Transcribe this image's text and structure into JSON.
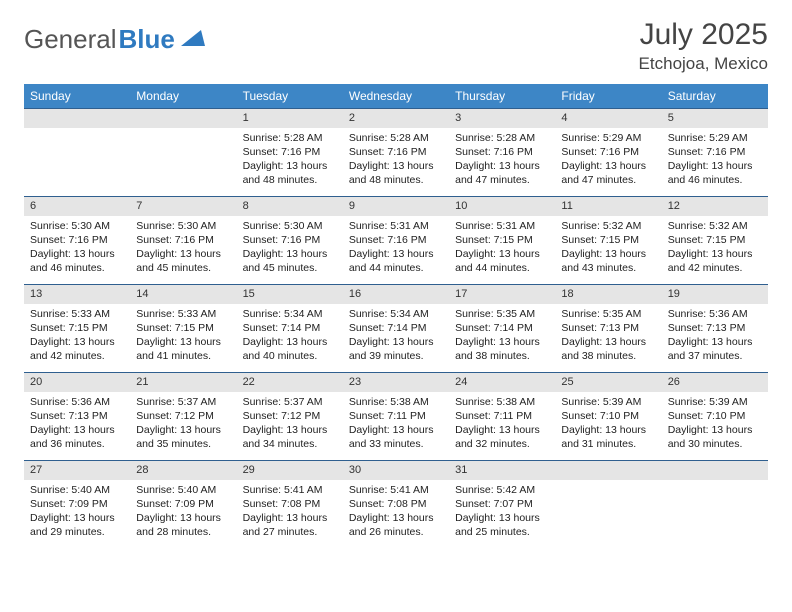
{
  "logo": {
    "word1": "General",
    "word2": "Blue"
  },
  "header": {
    "month_title": "July 2025",
    "location": "Etchojoa, Mexico"
  },
  "colors": {
    "header_bg": "#3d86c6",
    "header_text": "#ffffff",
    "daynum_bg": "#e5e5e5",
    "cell_border": "#2f5f8f",
    "logo_gray": "#555555",
    "logo_blue": "#2f7ac0"
  },
  "weekdays": [
    "Sunday",
    "Monday",
    "Tuesday",
    "Wednesday",
    "Thursday",
    "Friday",
    "Saturday"
  ],
  "weeks": [
    [
      null,
      null,
      {
        "n": "1",
        "sr": "5:28 AM",
        "ss": "7:16 PM",
        "dl": "13 hours and 48 minutes."
      },
      {
        "n": "2",
        "sr": "5:28 AM",
        "ss": "7:16 PM",
        "dl": "13 hours and 48 minutes."
      },
      {
        "n": "3",
        "sr": "5:28 AM",
        "ss": "7:16 PM",
        "dl": "13 hours and 47 minutes."
      },
      {
        "n": "4",
        "sr": "5:29 AM",
        "ss": "7:16 PM",
        "dl": "13 hours and 47 minutes."
      },
      {
        "n": "5",
        "sr": "5:29 AM",
        "ss": "7:16 PM",
        "dl": "13 hours and 46 minutes."
      }
    ],
    [
      {
        "n": "6",
        "sr": "5:30 AM",
        "ss": "7:16 PM",
        "dl": "13 hours and 46 minutes."
      },
      {
        "n": "7",
        "sr": "5:30 AM",
        "ss": "7:16 PM",
        "dl": "13 hours and 45 minutes."
      },
      {
        "n": "8",
        "sr": "5:30 AM",
        "ss": "7:16 PM",
        "dl": "13 hours and 45 minutes."
      },
      {
        "n": "9",
        "sr": "5:31 AM",
        "ss": "7:16 PM",
        "dl": "13 hours and 44 minutes."
      },
      {
        "n": "10",
        "sr": "5:31 AM",
        "ss": "7:15 PM",
        "dl": "13 hours and 44 minutes."
      },
      {
        "n": "11",
        "sr": "5:32 AM",
        "ss": "7:15 PM",
        "dl": "13 hours and 43 minutes."
      },
      {
        "n": "12",
        "sr": "5:32 AM",
        "ss": "7:15 PM",
        "dl": "13 hours and 42 minutes."
      }
    ],
    [
      {
        "n": "13",
        "sr": "5:33 AM",
        "ss": "7:15 PM",
        "dl": "13 hours and 42 minutes."
      },
      {
        "n": "14",
        "sr": "5:33 AM",
        "ss": "7:15 PM",
        "dl": "13 hours and 41 minutes."
      },
      {
        "n": "15",
        "sr": "5:34 AM",
        "ss": "7:14 PM",
        "dl": "13 hours and 40 minutes."
      },
      {
        "n": "16",
        "sr": "5:34 AM",
        "ss": "7:14 PM",
        "dl": "13 hours and 39 minutes."
      },
      {
        "n": "17",
        "sr": "5:35 AM",
        "ss": "7:14 PM",
        "dl": "13 hours and 38 minutes."
      },
      {
        "n": "18",
        "sr": "5:35 AM",
        "ss": "7:13 PM",
        "dl": "13 hours and 38 minutes."
      },
      {
        "n": "19",
        "sr": "5:36 AM",
        "ss": "7:13 PM",
        "dl": "13 hours and 37 minutes."
      }
    ],
    [
      {
        "n": "20",
        "sr": "5:36 AM",
        "ss": "7:13 PM",
        "dl": "13 hours and 36 minutes."
      },
      {
        "n": "21",
        "sr": "5:37 AM",
        "ss": "7:12 PM",
        "dl": "13 hours and 35 minutes."
      },
      {
        "n": "22",
        "sr": "5:37 AM",
        "ss": "7:12 PM",
        "dl": "13 hours and 34 minutes."
      },
      {
        "n": "23",
        "sr": "5:38 AM",
        "ss": "7:11 PM",
        "dl": "13 hours and 33 minutes."
      },
      {
        "n": "24",
        "sr": "5:38 AM",
        "ss": "7:11 PM",
        "dl": "13 hours and 32 minutes."
      },
      {
        "n": "25",
        "sr": "5:39 AM",
        "ss": "7:10 PM",
        "dl": "13 hours and 31 minutes."
      },
      {
        "n": "26",
        "sr": "5:39 AM",
        "ss": "7:10 PM",
        "dl": "13 hours and 30 minutes."
      }
    ],
    [
      {
        "n": "27",
        "sr": "5:40 AM",
        "ss": "7:09 PM",
        "dl": "13 hours and 29 minutes."
      },
      {
        "n": "28",
        "sr": "5:40 AM",
        "ss": "7:09 PM",
        "dl": "13 hours and 28 minutes."
      },
      {
        "n": "29",
        "sr": "5:41 AM",
        "ss": "7:08 PM",
        "dl": "13 hours and 27 minutes."
      },
      {
        "n": "30",
        "sr": "5:41 AM",
        "ss": "7:08 PM",
        "dl": "13 hours and 26 minutes."
      },
      {
        "n": "31",
        "sr": "5:42 AM",
        "ss": "7:07 PM",
        "dl": "13 hours and 25 minutes."
      },
      null,
      null
    ]
  ],
  "labels": {
    "sunrise": "Sunrise:",
    "sunset": "Sunset:",
    "daylight": "Daylight:"
  }
}
